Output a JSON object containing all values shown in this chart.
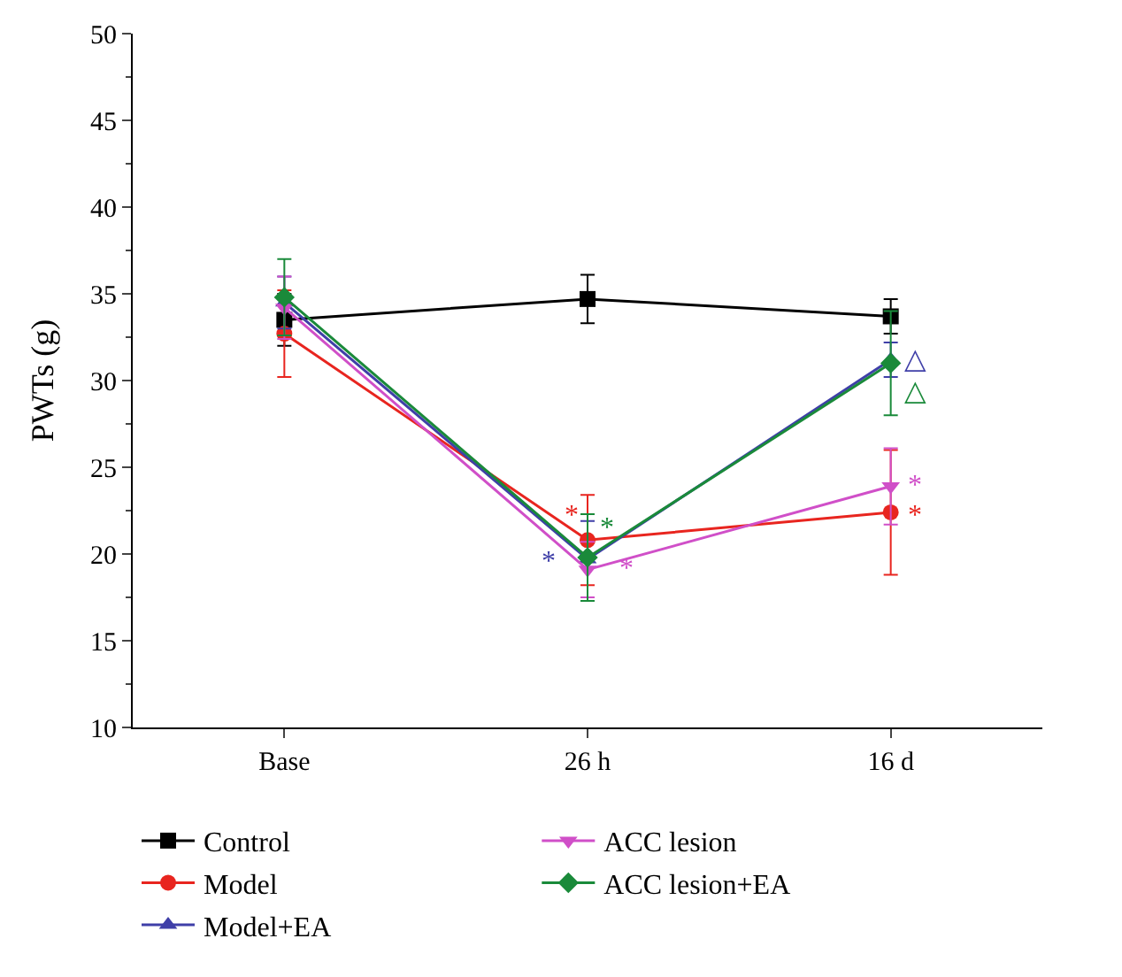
{
  "chart_data": {
    "type": "line",
    "ylabel": "PWTs (g)",
    "categories": [
      "Base",
      "26 h",
      "16 d"
    ],
    "ylim": [
      10,
      50
    ],
    "yticks": [
      10,
      15,
      20,
      25,
      30,
      35,
      40,
      45,
      50
    ],
    "legend": "bottom",
    "line_style": "solid",
    "series": [
      {
        "name": "Control",
        "color": "#000000",
        "marker": "square",
        "values": [
          33.5,
          34.7,
          33.7
        ],
        "errors": [
          1.5,
          1.4,
          1.0
        ]
      },
      {
        "name": "Model",
        "color": "#e8251f",
        "marker": "circle",
        "values": [
          32.7,
          20.8,
          22.4
        ],
        "errors": [
          2.5,
          2.6,
          3.6
        ],
        "value_labels": [
          null,
          "*",
          "*"
        ]
      },
      {
        "name": "Model+EA",
        "color": "#3f3fa8",
        "marker": "triangle",
        "values": [
          34.5,
          19.7,
          31.2
        ],
        "errors": [
          1.5,
          2.2,
          1.0
        ],
        "value_labels": [
          null,
          "*",
          "△"
        ]
      },
      {
        "name": "ACC lesion",
        "color": "#d04fc8",
        "marker": "triangle-down",
        "values": [
          34.2,
          19.1,
          23.9
        ],
        "errors": [
          1.8,
          1.6,
          2.2
        ],
        "value_labels": [
          null,
          "*",
          "*"
        ]
      },
      {
        "name": "ACC lesion+EA",
        "color": "#1a8a3a",
        "marker": "diamond",
        "values": [
          34.8,
          19.8,
          31.0
        ],
        "errors": [
          2.2,
          2.5,
          3.0
        ],
        "value_labels": [
          null,
          "*",
          "△"
        ]
      }
    ]
  }
}
